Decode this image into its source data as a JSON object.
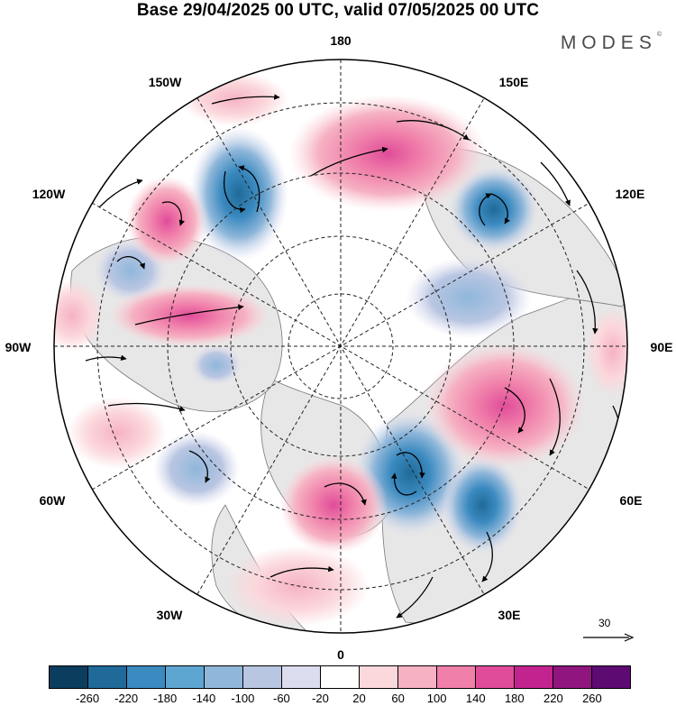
{
  "title": "Base 29/04/2025 00 UTC, valid 07/05/2025 00 UTC",
  "brand": {
    "name": "MODES",
    "mark": "©"
  },
  "meridian_labels": {
    "top": "180",
    "top_left": "150W",
    "top_right": "150E",
    "upper_left": "120W",
    "upper_right": "120E",
    "left": "90W",
    "right": "90E",
    "lower_left": "60W",
    "lower_right": "60E",
    "bottom_left": "30W",
    "bottom_right": "30E",
    "bottom": "0"
  },
  "reference_vector": {
    "label": "30",
    "icon": "arrow-right-icon"
  },
  "colorbar": {
    "colors": [
      "#0b3d5e",
      "#1f6a98",
      "#3b8ac0",
      "#5ea6d2",
      "#8fb7da",
      "#b9c6e2",
      "#dcdcef",
      "#ffffff",
      "#fbd8dc",
      "#f6b2c3",
      "#f07faa",
      "#e04c9a",
      "#c2238f",
      "#90157f",
      "#5e0a73"
    ],
    "ticks": [
      "-260",
      "-220",
      "-180",
      "-140",
      "-100",
      "-60",
      "-20",
      "20",
      "60",
      "100",
      "140",
      "180",
      "220",
      "260"
    ]
  },
  "map": {
    "projection": "north-polar-stereographic",
    "graticule": "dashed",
    "land_color": "#e7e7e7",
    "positive_anomaly_color": "#f07faa",
    "negative_anomaly_color": "#3b8ac0"
  }
}
